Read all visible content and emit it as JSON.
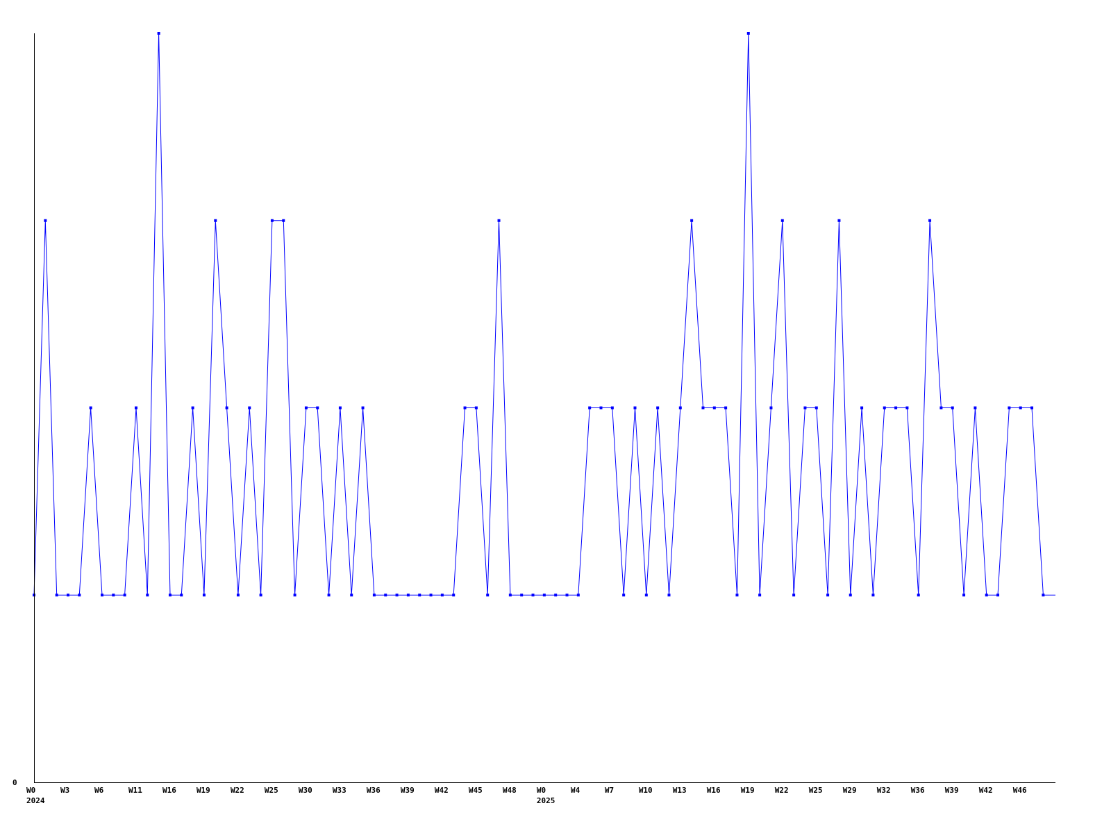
{
  "chart_data": {
    "type": "line",
    "title": "",
    "xlabel": "",
    "ylabel": "",
    "ylim": [
      0,
      4
    ],
    "y_tick_labels": [
      "0"
    ],
    "grid": false,
    "line_color": "#0000ff",
    "axis_color": "#000000",
    "x_tick_labels": [
      "W0",
      "W3",
      "W6",
      "W11",
      "W16",
      "W19",
      "W22",
      "W25",
      "W30",
      "W33",
      "W36",
      "W39",
      "W42",
      "W45",
      "W48",
      "W0",
      "W4",
      "W7",
      "W10",
      "W13",
      "W16",
      "W19",
      "W22",
      "W25",
      "W29",
      "W32",
      "W36",
      "W39",
      "W42",
      "W46"
    ],
    "x_year_labels": [
      {
        "label": "2024",
        "tick_index": 0
      },
      {
        "label": "2025",
        "tick_index": 15
      }
    ],
    "values": [
      1,
      3,
      1,
      1,
      1,
      2,
      1,
      1,
      1,
      2,
      1,
      4,
      1,
      1,
      2,
      1,
      3,
      2,
      1,
      2,
      1,
      3,
      3,
      1,
      2,
      2,
      1,
      2,
      1,
      2,
      1,
      1,
      1,
      1,
      1,
      1,
      1,
      1,
      2,
      2,
      1,
      3,
      1,
      1,
      1,
      1,
      1,
      1,
      1,
      2,
      2,
      2,
      1,
      2,
      1,
      2,
      1,
      2,
      3,
      2,
      2,
      2,
      1,
      4,
      1,
      2,
      3,
      1,
      2,
      2,
      1,
      3,
      1,
      2,
      1,
      2,
      2,
      2,
      1,
      3,
      2,
      2,
      1,
      2,
      1,
      1,
      2,
      2,
      2,
      1
    ]
  }
}
